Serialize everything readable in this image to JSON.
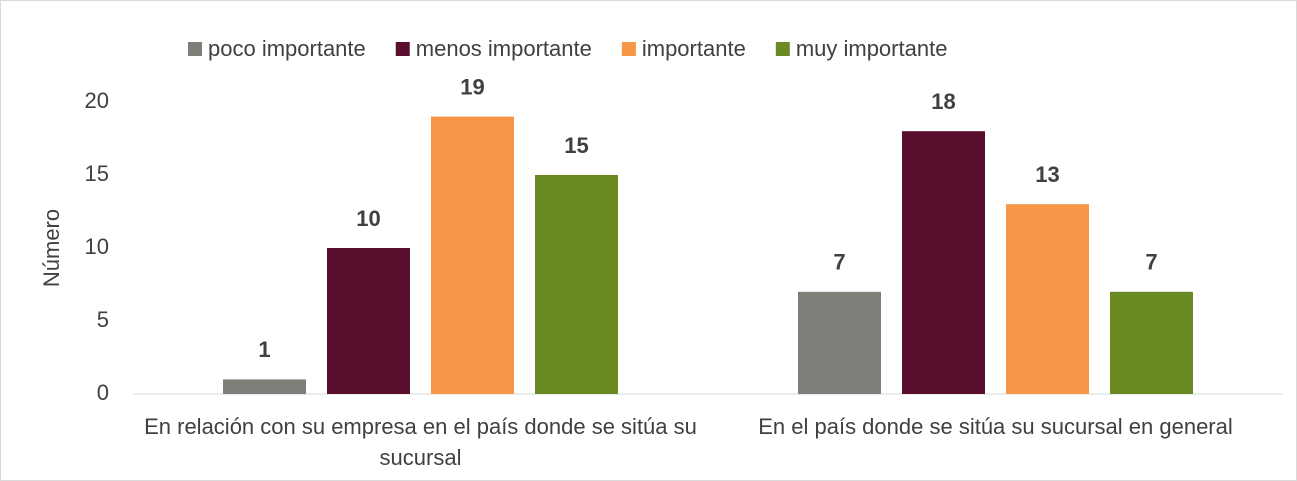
{
  "chart_data": {
    "type": "bar",
    "y_label": "Número",
    "categories": [
      "En relación con su empresa en el país donde se sitúa su sucursal",
      "En el país donde se sitúa su sucursal en general"
    ],
    "series": [
      {
        "name": "poco importante",
        "color": "#7f7e78",
        "values": [
          1,
          7
        ]
      },
      {
        "name": "menos importante",
        "color": "#5a0f2f",
        "values": [
          10,
          18
        ]
      },
      {
        "name": "importante",
        "color": "#f79646",
        "values": [
          19,
          13
        ]
      },
      {
        "name": "muy importante",
        "color": "#6a8a24",
        "values": [
          15,
          7
        ]
      }
    ],
    "ylim": [
      0,
      20
    ],
    "yticks": [
      0,
      5,
      10,
      15,
      20
    ],
    "grid": false,
    "legend": "top"
  }
}
